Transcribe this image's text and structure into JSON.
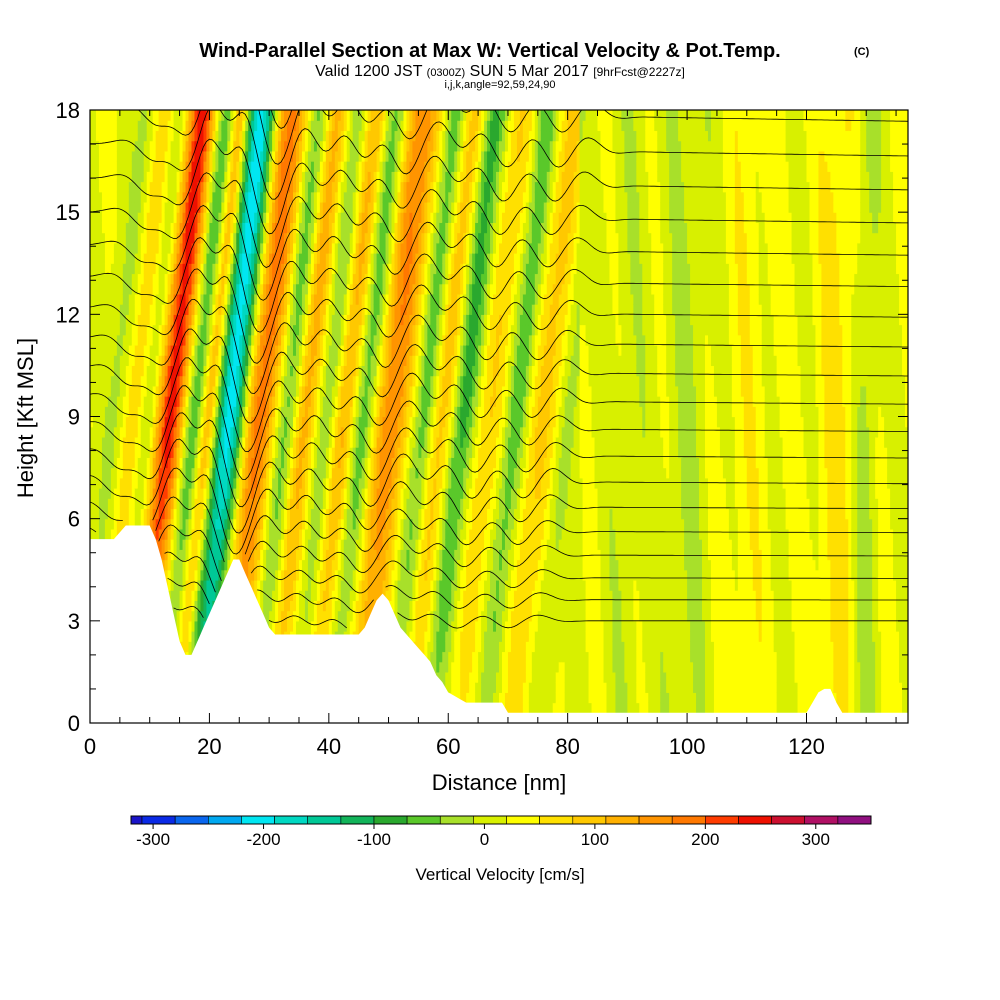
{
  "titles": {
    "main": "Wind-Parallel Section at Max W: Vertical Velocity & Pot.Temp.",
    "main_mark": "(C)",
    "valid_prefix": "Valid 1200 JST",
    "valid_utc": "(0300Z)",
    "valid_date": "SUN 5 Mar 2017",
    "valid_fcst": "[9hrFcst@2227z]",
    "params": "i,j,k,angle=92,59,24,90"
  },
  "chart_data": {
    "type": "heatmap",
    "xlabel": "Distance [nm]",
    "ylabel": "Height [Kft MSL]",
    "xlim": [
      0,
      137
    ],
    "ylim": [
      0,
      18
    ],
    "x_ticks": [
      0,
      20,
      40,
      60,
      80,
      100,
      120
    ],
    "y_ticks": [
      0,
      3,
      6,
      9,
      12,
      15,
      18
    ],
    "background_w": 20,
    "w_bands": [
      {
        "x": 4,
        "w": -40,
        "width": 2.0
      },
      {
        "x": 7.5,
        "w": 60,
        "width": 2.0
      },
      {
        "x": 10,
        "w": -60,
        "width": 2.0
      },
      {
        "x": 13.5,
        "w": 230,
        "width": 2.6
      },
      {
        "x": 17.5,
        "w": -110,
        "width": 2.2
      },
      {
        "x": 19.8,
        "w": 130,
        "width": 1.5
      },
      {
        "x": 23.5,
        "w": -230,
        "width": 2.5
      },
      {
        "x": 28.5,
        "w": 170,
        "width": 2.8
      },
      {
        "x": 33,
        "w": -90,
        "width": 2.0
      },
      {
        "x": 36,
        "w": 110,
        "width": 2.0
      },
      {
        "x": 40,
        "w": -70,
        "width": 2.0
      },
      {
        "x": 42.5,
        "w": 110,
        "width": 2.0
      },
      {
        "x": 46,
        "w": -90,
        "width": 2.0
      },
      {
        "x": 50.5,
        "w": 150,
        "width": 3.0
      },
      {
        "x": 56,
        "w": -90,
        "width": 2.0
      },
      {
        "x": 59,
        "w": 90,
        "width": 2.2
      },
      {
        "x": 62.5,
        "w": -110,
        "width": 2.2
      },
      {
        "x": 67,
        "w": 60,
        "width": 2.5
      },
      {
        "x": 71.5,
        "w": -90,
        "width": 2.0
      },
      {
        "x": 76,
        "w": 70,
        "width": 3.0
      },
      {
        "x": 80,
        "w": -50,
        "width": 2.0
      },
      {
        "x": 90,
        "w": -20,
        "width": 4.0
      },
      {
        "x": 100,
        "w": -30,
        "width": 4.0
      },
      {
        "x": 110,
        "w": 20,
        "width": 4.0
      },
      {
        "x": 125,
        "w": 40,
        "width": 3.0
      },
      {
        "x": 130,
        "w": -40,
        "width": 2.0
      }
    ],
    "terrain": [
      [
        0,
        5.4
      ],
      [
        2,
        5.4
      ],
      [
        4,
        5.4
      ],
      [
        6,
        5.8
      ],
      [
        10,
        5.8
      ],
      [
        11,
        5.4
      ],
      [
        12,
        4.8
      ],
      [
        13,
        4.0
      ],
      [
        14,
        3.2
      ],
      [
        15,
        2.4
      ],
      [
        16,
        2.0
      ],
      [
        17,
        2.0
      ],
      [
        18,
        2.4
      ],
      [
        19,
        2.8
      ],
      [
        20,
        3.2
      ],
      [
        21,
        3.6
      ],
      [
        22,
        4.0
      ],
      [
        23,
        4.4
      ],
      [
        24,
        4.8
      ],
      [
        25,
        4.8
      ],
      [
        26,
        4.4
      ],
      [
        27,
        4.0
      ],
      [
        28,
        3.6
      ],
      [
        29,
        3.2
      ],
      [
        30,
        2.8
      ],
      [
        31,
        2.6
      ],
      [
        40,
        2.6
      ],
      [
        45,
        2.6
      ],
      [
        46,
        2.8
      ],
      [
        47,
        3.2
      ],
      [
        48,
        3.6
      ],
      [
        49,
        3.8
      ],
      [
        50,
        3.6
      ],
      [
        51,
        3.2
      ],
      [
        52,
        2.8
      ],
      [
        53,
        2.6
      ],
      [
        54,
        2.4
      ],
      [
        55,
        2.2
      ],
      [
        56,
        2.0
      ],
      [
        57,
        1.8
      ],
      [
        58,
        1.4
      ],
      [
        59,
        1.2
      ],
      [
        60,
        0.9
      ],
      [
        61,
        0.8
      ],
      [
        62,
        0.7
      ],
      [
        63,
        0.6
      ],
      [
        69,
        0.6
      ],
      [
        70,
        0.3
      ],
      [
        120,
        0.3
      ],
      [
        121,
        0.6
      ],
      [
        122,
        0.9
      ],
      [
        123,
        1.0
      ],
      [
        124,
        1.0
      ],
      [
        125,
        0.6
      ],
      [
        126,
        0.3
      ],
      [
        137,
        0.3
      ]
    ],
    "contour_step": 2,
    "colorbar": {
      "label": "Vertical Velocity [cm/s]",
      "ticks": [
        -300,
        -200,
        -100,
        0,
        100,
        200,
        300
      ],
      "tick_labels": [
        "-300",
        "-200",
        "-100",
        "0",
        "100",
        "200",
        "300"
      ],
      "levels": [
        {
          "value": -310,
          "color": "#1a14c8"
        },
        {
          "value": -280,
          "color": "#0a2ae6"
        },
        {
          "value": -250,
          "color": "#0a66ee"
        },
        {
          "value": -220,
          "color": "#00a8f0"
        },
        {
          "value": -190,
          "color": "#00e6f2"
        },
        {
          "value": -160,
          "color": "#00d8c2"
        },
        {
          "value": -130,
          "color": "#00c896"
        },
        {
          "value": -100,
          "color": "#12b45a"
        },
        {
          "value": -70,
          "color": "#2aa82e"
        },
        {
          "value": -40,
          "color": "#5ac82a"
        },
        {
          "value": -10,
          "color": "#a8e02a"
        },
        {
          "value": 20,
          "color": "#d8f000"
        },
        {
          "value": 50,
          "color": "#ffff00"
        },
        {
          "value": 80,
          "color": "#ffe000"
        },
        {
          "value": 110,
          "color": "#ffc800"
        },
        {
          "value": 140,
          "color": "#ffb000"
        },
        {
          "value": 170,
          "color": "#ff9400"
        },
        {
          "value": 200,
          "color": "#ff7800"
        },
        {
          "value": 230,
          "color": "#ff3c00"
        },
        {
          "value": 260,
          "color": "#ee1000"
        },
        {
          "value": 290,
          "color": "#cc1030"
        },
        {
          "value": 320,
          "color": "#b01064"
        },
        {
          "value": 350,
          "color": "#901080"
        },
        {
          "value": 380,
          "color": "#6a0a78"
        }
      ]
    }
  }
}
